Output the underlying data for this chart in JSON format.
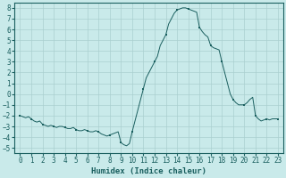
{
  "xlabel": "Humidex (Indice chaleur)",
  "xlim": [
    -0.5,
    23.5
  ],
  "ylim": [
    -5.5,
    8.5
  ],
  "xticks": [
    0,
    1,
    2,
    3,
    4,
    5,
    6,
    7,
    8,
    9,
    10,
    11,
    12,
    13,
    14,
    15,
    16,
    17,
    18,
    19,
    20,
    21,
    22,
    23
  ],
  "yticks": [
    -5,
    -4,
    -3,
    -2,
    -1,
    0,
    1,
    2,
    3,
    4,
    5,
    6,
    7,
    8
  ],
  "bg_color": "#c9eaea",
  "grid_color": "#aacfcf",
  "line_color": "#1a5f5f",
  "marker_color": "#1a5f5f",
  "hours": [
    0,
    0.25,
    0.5,
    0.75,
    1,
    1.25,
    1.5,
    1.75,
    2,
    2.25,
    2.5,
    2.75,
    3,
    3.25,
    3.5,
    3.75,
    4,
    4.25,
    4.5,
    4.75,
    5,
    5.25,
    5.5,
    5.75,
    6,
    6.25,
    6.5,
    6.75,
    7,
    7.25,
    7.5,
    7.75,
    8,
    8.25,
    8.5,
    8.75,
    9,
    9.25,
    9.5,
    9.75,
    10,
    10.25,
    10.5,
    10.75,
    11,
    11.25,
    11.5,
    11.75,
    12,
    12.25,
    12.5,
    12.75,
    13,
    13.25,
    13.5,
    13.75,
    14,
    14.25,
    14.5,
    14.75,
    15,
    15.25,
    15.5,
    15.75,
    16,
    16.25,
    16.5,
    16.75,
    17,
    17.25,
    17.5,
    17.75,
    18,
    18.25,
    18.5,
    18.75,
    19,
    19.25,
    19.5,
    19.75,
    20,
    20.25,
    20.5,
    20.75,
    21,
    21.25,
    21.5,
    21.75,
    22,
    22.25,
    22.5,
    22.75,
    23
  ],
  "values": [
    -2.0,
    -2.1,
    -2.2,
    -2.1,
    -2.3,
    -2.5,
    -2.6,
    -2.5,
    -2.8,
    -2.9,
    -3.0,
    -2.9,
    -3.0,
    -3.1,
    -3.0,
    -3.0,
    -3.1,
    -3.2,
    -3.2,
    -3.1,
    -3.3,
    -3.4,
    -3.4,
    -3.3,
    -3.4,
    -3.5,
    -3.5,
    -3.4,
    -3.5,
    -3.7,
    -3.8,
    -3.9,
    -3.8,
    -3.7,
    -3.6,
    -3.5,
    -4.5,
    -4.7,
    -4.8,
    -4.6,
    -3.5,
    -2.5,
    -1.5,
    -0.5,
    0.5,
    1.5,
    2.0,
    2.5,
    3.0,
    3.5,
    4.5,
    5.0,
    5.5,
    6.5,
    7.0,
    7.5,
    7.8,
    7.9,
    8.0,
    8.0,
    7.9,
    7.8,
    7.7,
    7.6,
    6.2,
    5.8,
    5.5,
    5.3,
    4.5,
    4.3,
    4.2,
    4.1,
    3.0,
    2.0,
    1.0,
    0.0,
    -0.5,
    -0.8,
    -1.0,
    -1.0,
    -1.0,
    -0.8,
    -0.5,
    -0.3,
    -2.0,
    -2.3,
    -2.5,
    -2.4,
    -2.3,
    -2.4,
    -2.3,
    -2.3,
    -2.3
  ],
  "marker_hours": [
    0,
    1,
    2,
    3,
    4,
    5,
    6,
    7,
    8,
    9,
    10,
    11,
    12,
    13,
    14,
    15,
    16,
    17,
    18,
    19,
    20,
    21,
    22,
    23
  ],
  "marker_values": [
    -2.0,
    -2.3,
    -2.8,
    -3.0,
    -3.1,
    -3.3,
    -3.4,
    -3.5,
    -3.8,
    -4.5,
    -3.5,
    0.5,
    3.0,
    5.5,
    7.8,
    7.9,
    6.2,
    4.5,
    3.0,
    -0.5,
    -1.0,
    -2.0,
    -2.3,
    -2.3
  ]
}
